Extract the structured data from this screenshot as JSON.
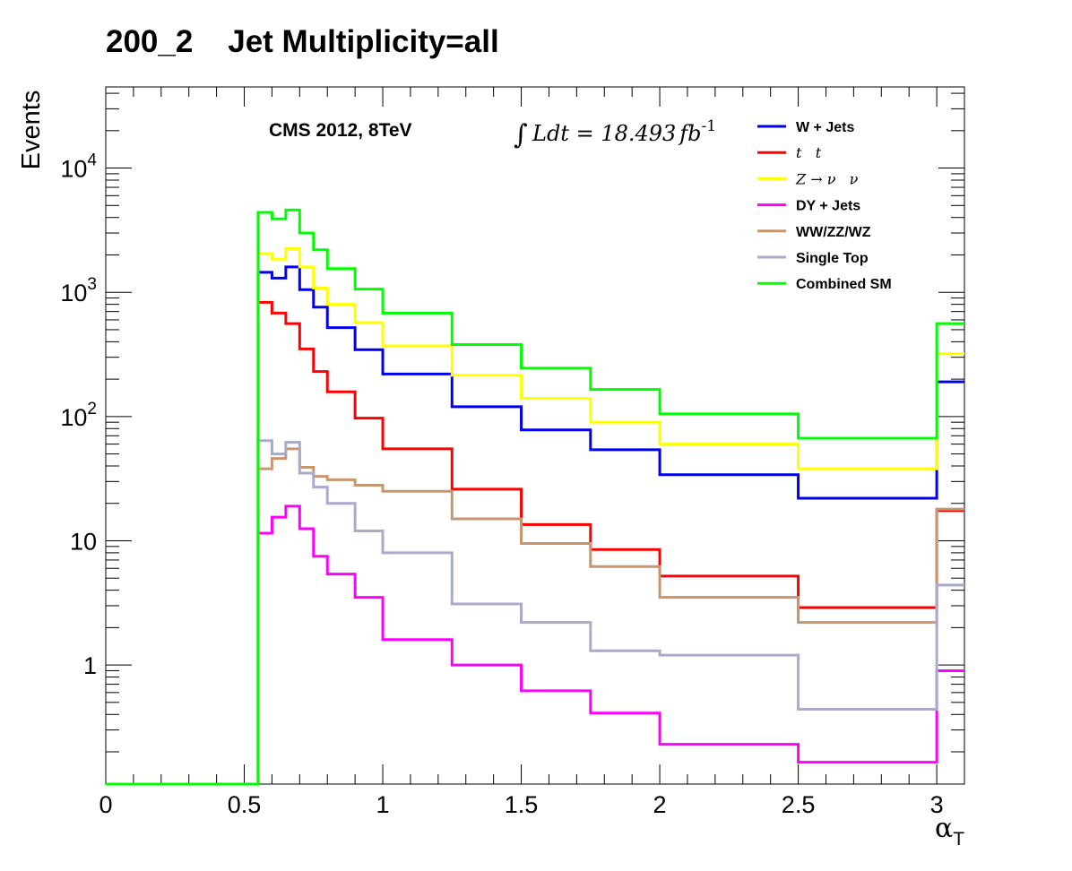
{
  "chart_data": {
    "type": "line",
    "title": "200_2    Jet Multiplicity=all",
    "ylabel": "Events",
    "xlabel": "α",
    "xlabel_sub": "T",
    "x_range": [
      0,
      3.1
    ],
    "y_range": [
      0.11,
      45000
    ],
    "y_scale": "log",
    "grid": false,
    "legend_position": "top-right",
    "x_ticks": [
      {
        "value": 0,
        "label": "0"
      },
      {
        "value": 0.5,
        "label": "0.5"
      },
      {
        "value": 1,
        "label": "1"
      },
      {
        "value": 1.5,
        "label": "1.5"
      },
      {
        "value": 2,
        "label": "2"
      },
      {
        "value": 2.5,
        "label": "2.5"
      },
      {
        "value": 3,
        "label": "3"
      }
    ],
    "y_tick_labels": [
      {
        "value": 1,
        "base": "1",
        "exp": ""
      },
      {
        "value": 10,
        "base": "10",
        "exp": ""
      },
      {
        "value": 100,
        "base": "10",
        "exp": "2"
      },
      {
        "value": 1000,
        "base": "10",
        "exp": "3"
      },
      {
        "value": 10000,
        "base": "10",
        "exp": "4"
      }
    ],
    "annotations": {
      "experiment": "CMS 2012, 8TeV",
      "lumi_integral": "∫",
      "lumi_text": "Ldt = 18.493",
      "lumi_unit": "fb",
      "lumi_exp": "-1"
    },
    "bin_edges": [
      0,
      0.05,
      0.1,
      0.15,
      0.2,
      0.25,
      0.3,
      0.35,
      0.4,
      0.45,
      0.5,
      0.55,
      0.6,
      0.65,
      0.7,
      0.75,
      0.8,
      0.9,
      1.0,
      1.25,
      1.5,
      1.75,
      2.0,
      2.5,
      3.0,
      3.1
    ],
    "series": [
      {
        "name": "W + Jets",
        "color": "#0000ee",
        "values": [
          0,
          0,
          0,
          0,
          0,
          0,
          0,
          0,
          0,
          0,
          0,
          1450,
          1300,
          1600,
          1050,
          760,
          520,
          345,
          220,
          120,
          78,
          54,
          34,
          22,
          190
        ]
      },
      {
        "name": "t   t",
        "color": "#ff0000",
        "values": [
          0,
          0,
          0,
          0,
          0,
          0,
          0,
          0,
          0,
          0,
          0,
          830,
          680,
          560,
          350,
          230,
          158,
          97,
          55,
          26,
          13.5,
          8.5,
          5.2,
          2.9,
          17.5
        ]
      },
      {
        "name": "Z → ν   ν",
        "color": "#ffff00",
        "values": [
          0,
          0,
          0,
          0,
          0,
          0,
          0,
          0,
          0,
          0,
          0,
          2050,
          1850,
          2250,
          1600,
          1080,
          800,
          570,
          370,
          215,
          140,
          90,
          60,
          38,
          320
        ]
      },
      {
        "name": "DY + Jets",
        "color": "#ff00ff",
        "values": [
          0,
          0,
          0,
          0,
          0,
          0,
          0,
          0,
          0,
          0,
          0,
          11.5,
          15.5,
          19,
          12.5,
          7.5,
          5.4,
          3.5,
          1.6,
          1.0,
          0.62,
          0.41,
          0.23,
          0.165,
          0.9
        ]
      },
      {
        "name": "WW/ZZ/WZ",
        "color": "#c8966e",
        "values": [
          0,
          0,
          0,
          0,
          0,
          0,
          0,
          0,
          0,
          0,
          0,
          38,
          46,
          55,
          39,
          33,
          31,
          28,
          25,
          15,
          9.5,
          6.2,
          3.5,
          2.2,
          18
        ]
      },
      {
        "name": "Single Top",
        "color": "#aaaacc",
        "values": [
          0,
          0,
          0,
          0,
          0,
          0,
          0,
          0,
          0,
          0,
          0,
          64,
          50,
          62,
          35,
          27,
          20,
          12,
          8,
          3.1,
          2.2,
          1.3,
          1.2,
          0.44,
          4.4
        ]
      },
      {
        "name": "Combined SM",
        "color": "#00ff00",
        "values": [
          0,
          0,
          0,
          0,
          0,
          0,
          0,
          0,
          0,
          0,
          0,
          4400,
          3900,
          4600,
          3000,
          2200,
          1550,
          1060,
          680,
          380,
          245,
          165,
          105,
          67,
          560
        ]
      }
    ]
  }
}
